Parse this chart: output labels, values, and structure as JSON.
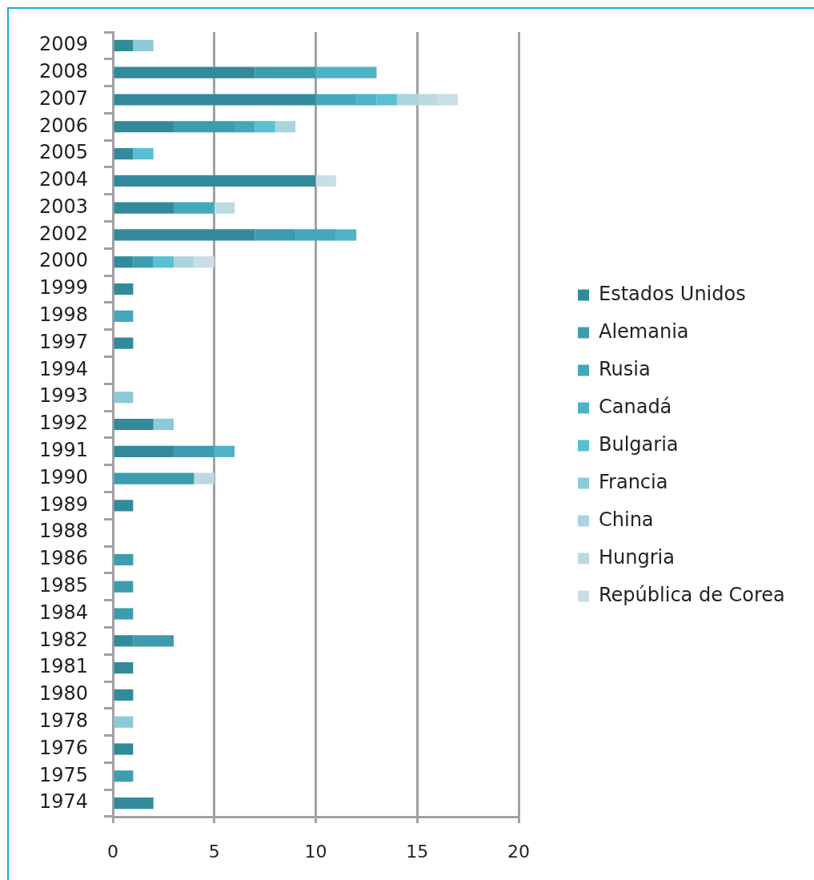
{
  "chart_data": {
    "type": "bar",
    "orientation": "horizontal",
    "stacked": true,
    "categories": [
      "2009",
      "2008",
      "2007",
      "2006",
      "2005",
      "2004",
      "2003",
      "2002",
      "2000",
      "1999",
      "1998",
      "1997",
      "1994",
      "1993",
      "1992",
      "1991",
      "1990",
      "1989",
      "1988",
      "1986",
      "1985",
      "1984",
      "1982",
      "1981",
      "1980",
      "1978",
      "1976",
      "1975",
      "1974"
    ],
    "series": [
      {
        "name": "Estados Unidos",
        "color": "#328a9b",
        "values": [
          1,
          7,
          10,
          3,
          1,
          10,
          3,
          7,
          1,
          1,
          null,
          1,
          null,
          null,
          2,
          3,
          null,
          1,
          null,
          null,
          null,
          null,
          1,
          1,
          1,
          null,
          1,
          null,
          2
        ]
      },
      {
        "name": "Alemania",
        "color": "#3d9caf",
        "values": [
          null,
          3,
          null,
          3,
          null,
          null,
          null,
          2,
          1,
          null,
          null,
          null,
          null,
          null,
          null,
          2,
          4,
          null,
          null,
          1,
          1,
          1,
          2,
          null,
          null,
          null,
          null,
          1,
          null
        ]
      },
      {
        "name": "Rusia",
        "color": "#43a8bd",
        "values": [
          null,
          null,
          2,
          1,
          null,
          null,
          2,
          2,
          null,
          null,
          1,
          null,
          null,
          null,
          null,
          null,
          null,
          null,
          null,
          null,
          null,
          null,
          null,
          null,
          null,
          null,
          null,
          null,
          null
        ]
      },
      {
        "name": "Canadá",
        "color": "#4fb3c8",
        "values": [
          null,
          3,
          1,
          null,
          null,
          null,
          null,
          1,
          null,
          null,
          null,
          null,
          null,
          null,
          null,
          1,
          null,
          null,
          null,
          null,
          null,
          null,
          null,
          null,
          null,
          null,
          null,
          null,
          null
        ]
      },
      {
        "name": "Bulgaria",
        "color": "#59bfd3",
        "values": [
          null,
          null,
          1,
          1,
          1,
          null,
          null,
          null,
          1,
          null,
          null,
          null,
          null,
          null,
          null,
          null,
          null,
          null,
          null,
          null,
          null,
          null,
          null,
          null,
          null,
          null,
          null,
          null,
          null
        ]
      },
      {
        "name": "Francia",
        "color": "#8dcad7",
        "values": [
          1,
          null,
          null,
          null,
          null,
          null,
          null,
          null,
          null,
          null,
          null,
          null,
          null,
          1,
          1,
          null,
          null,
          null,
          null,
          null,
          null,
          null,
          null,
          null,
          null,
          1,
          null,
          null,
          null
        ]
      },
      {
        "name": "China",
        "color": "#abd5de",
        "values": [
          null,
          null,
          1,
          1,
          null,
          null,
          null,
          null,
          1,
          null,
          null,
          null,
          null,
          null,
          null,
          null,
          null,
          null,
          null,
          null,
          null,
          null,
          null,
          null,
          null,
          null,
          null,
          null,
          null
        ]
      },
      {
        "name": "Hungria",
        "color": "#bcd9e0",
        "values": [
          null,
          null,
          1,
          null,
          null,
          null,
          1,
          null,
          null,
          null,
          null,
          null,
          null,
          null,
          null,
          null,
          1,
          null,
          null,
          null,
          null,
          null,
          null,
          null,
          null,
          null,
          null,
          null,
          null
        ]
      },
      {
        "name": "República de Corea",
        "color": "#c9dee5",
        "values": [
          null,
          null,
          1,
          null,
          null,
          1,
          null,
          null,
          1,
          null,
          null,
          null,
          null,
          null,
          null,
          null,
          null,
          null,
          null,
          null,
          null,
          null,
          null,
          null,
          null,
          null,
          null,
          null,
          null
        ]
      }
    ],
    "xlim": [
      0,
      20
    ],
    "xticks": [
      0,
      5,
      10,
      15,
      20
    ],
    "grid": "x",
    "legend": "right"
  }
}
